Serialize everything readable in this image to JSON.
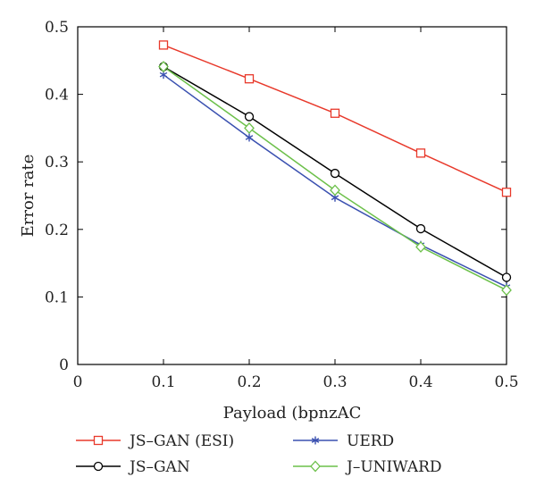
{
  "chart_data": {
    "type": "line",
    "title": "",
    "xlabel": "Payload (bpnzAC",
    "ylabel": "Error rate",
    "xlim": [
      0,
      0.5
    ],
    "ylim": [
      0,
      0.5
    ],
    "xticks": [
      0,
      0.1,
      0.2,
      0.3,
      0.4,
      0.5
    ],
    "yticks": [
      0,
      0.1,
      0.2,
      0.3,
      0.4,
      0.5
    ],
    "xtick_labels": [
      "0",
      "0.1",
      "0.2",
      "0.3",
      "0.4",
      "0.5"
    ],
    "ytick_labels": [
      "0",
      "0.1",
      "0.2",
      "0.3",
      "0.4",
      "0.5"
    ],
    "grid": false,
    "legend_position": "bottom",
    "x": [
      0.1,
      0.2,
      0.3,
      0.4,
      0.5
    ],
    "series": [
      {
        "name": "JS–GAN (ESI)",
        "values": [
          0.473,
          0.423,
          0.372,
          0.313,
          0.255
        ],
        "color": "#e8392b",
        "marker": "square"
      },
      {
        "name": "JS–GAN",
        "values": [
          0.441,
          0.367,
          0.283,
          0.201,
          0.129
        ],
        "color": "#000000",
        "marker": "circle"
      },
      {
        "name": "UERD",
        "values": [
          0.429,
          0.336,
          0.247,
          0.177,
          0.115
        ],
        "color": "#3a50b0",
        "marker": "asterisk"
      },
      {
        "name": "J–UNIWARD",
        "values": [
          0.441,
          0.35,
          0.258,
          0.174,
          0.11
        ],
        "color": "#6cc04a",
        "marker": "diamond"
      }
    ]
  }
}
